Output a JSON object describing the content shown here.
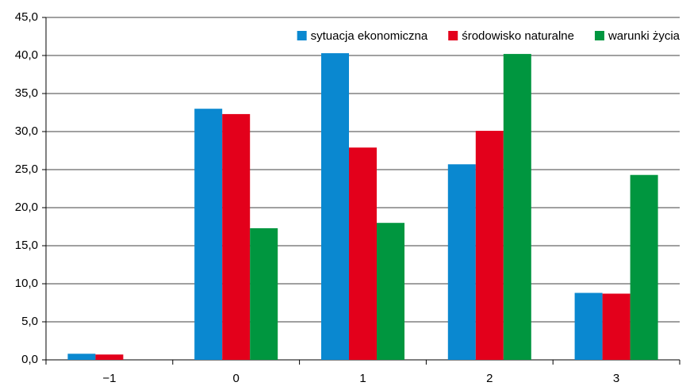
{
  "chart_data": {
    "type": "bar",
    "categories": [
      "−1",
      "0",
      "1",
      "2",
      "3"
    ],
    "series": [
      {
        "name": "sytuacja ekonomiczna",
        "color": "#0a88d0",
        "values": [
          0.8,
          33.0,
          40.3,
          25.7,
          8.8
        ]
      },
      {
        "name": "środowisko naturalne",
        "color": "#e3001b",
        "values": [
          0.7,
          32.3,
          27.9,
          30.1,
          8.7
        ]
      },
      {
        "name": "warunki życia",
        "color": "#00963f",
        "values": [
          0,
          17.3,
          18.0,
          40.2,
          24.3
        ]
      }
    ],
    "ylim": [
      0,
      45
    ],
    "yticks": [
      {
        "value": 0,
        "label": "0,0"
      },
      {
        "value": 5,
        "label": "5,0"
      },
      {
        "value": 10,
        "label": "10,0"
      },
      {
        "value": 15,
        "label": "15,0"
      },
      {
        "value": 20,
        "label": "20,0"
      },
      {
        "value": 25,
        "label": "25,0"
      },
      {
        "value": 30,
        "label": "30,0"
      },
      {
        "value": 35,
        "label": "35,0"
      },
      {
        "value": 40,
        "label": "40,0"
      },
      {
        "value": 45,
        "label": "45,0"
      }
    ],
    "grid": true,
    "legend": "top-right"
  }
}
